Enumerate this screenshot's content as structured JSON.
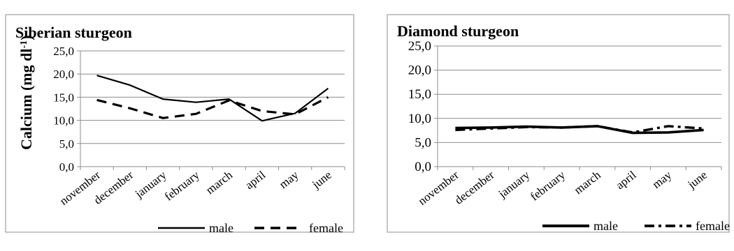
{
  "chart_data": [
    {
      "type": "line",
      "title": "Siberian sturgeon",
      "ylabel": "Calcium (mg dl",
      "ylabel_sup": "-1",
      "ylabel_close": ")",
      "categories": [
        "november",
        "december",
        "january",
        "february",
        "march",
        "april",
        "may",
        "june"
      ],
      "ylim": [
        0,
        25
      ],
      "yticks": [
        "0,0",
        "5,0",
        "10,0",
        "15,0",
        "20,0",
        "25,0"
      ],
      "grid": true,
      "legend_position": "bottom-right",
      "series": [
        {
          "name": "male",
          "style": "solid",
          "values": [
            19.7,
            17.6,
            14.6,
            13.9,
            14.6,
            9.9,
            11.5,
            16.9
          ]
        },
        {
          "name": "female",
          "style": "dashed",
          "values": [
            14.4,
            12.6,
            10.5,
            11.4,
            14.3,
            12.0,
            11.3,
            15.0
          ]
        }
      ]
    },
    {
      "type": "line",
      "title": "Diamond sturgeon",
      "ylabel": "",
      "categories": [
        "november",
        "december",
        "january",
        "february",
        "march",
        "april",
        "may",
        "june"
      ],
      "ylim": [
        0,
        25
      ],
      "yticks": [
        "0,0",
        "5,0",
        "10,0",
        "15,0",
        "20,0",
        "25,0"
      ],
      "grid": true,
      "legend_position": "bottom-right",
      "series": [
        {
          "name": "male",
          "style": "solid-thick",
          "values": [
            8.0,
            8.1,
            8.3,
            8.1,
            8.4,
            7.0,
            7.1,
            7.6
          ]
        },
        {
          "name": "female",
          "style": "dash-dot",
          "values": [
            7.6,
            7.9,
            8.2,
            8.1,
            8.4,
            7.1,
            8.4,
            7.9
          ]
        }
      ]
    }
  ],
  "colors": {
    "line": "#000000",
    "grid": "#8c8c8c",
    "frame": "#8c8c8c"
  }
}
